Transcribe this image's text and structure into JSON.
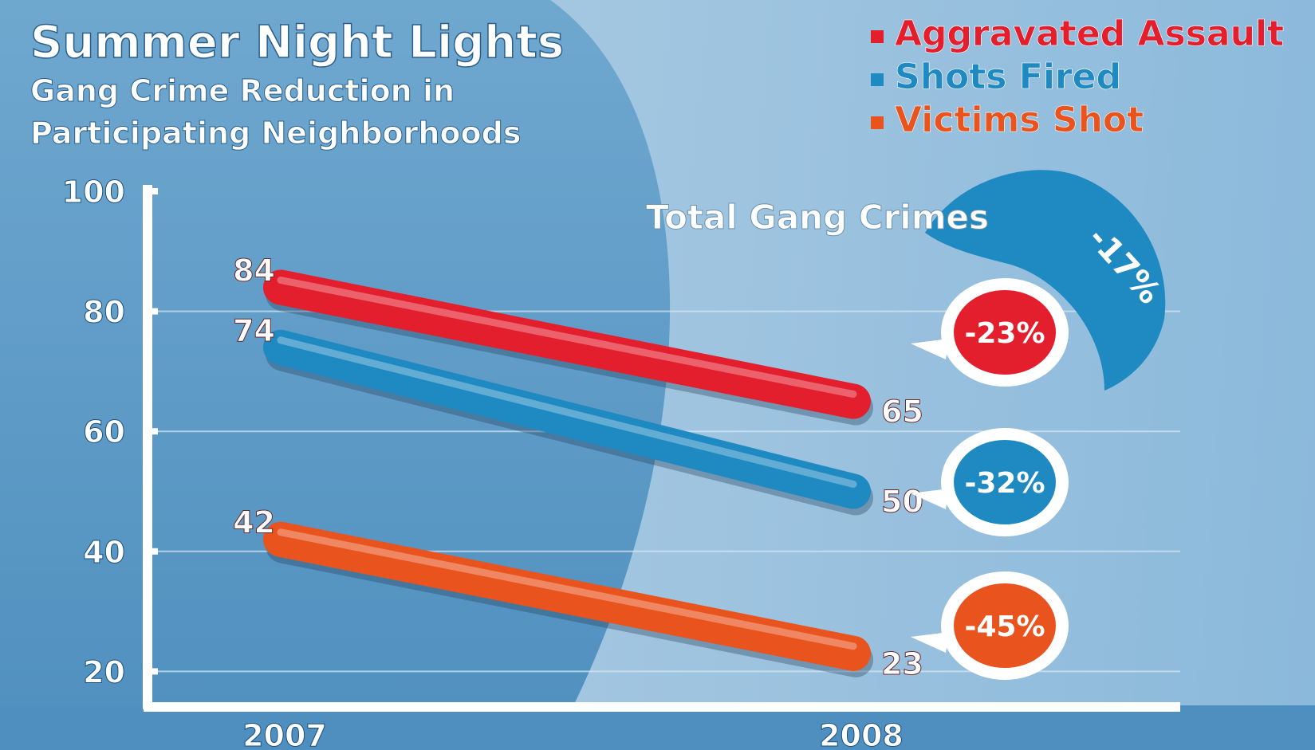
{
  "chart_data": {
    "type": "line",
    "title": "Summer Night Lights",
    "subtitle": [
      "Gang Crime Reduction in",
      "Participating Neighborhoods"
    ],
    "xlabel": "",
    "ylabel": "",
    "categories": [
      "2007",
      "2008"
    ],
    "y_ticks": [
      "100",
      "80",
      "60",
      "40",
      "20"
    ],
    "ylim": [
      0,
      100
    ],
    "grid": true,
    "legend_position": "top-right",
    "series": [
      {
        "name": "Aggravated Assault",
        "values": [
          84,
          65
        ],
        "labels": [
          "84",
          "65"
        ],
        "change": "-23%",
        "color": "#e31e2d"
      },
      {
        "name": "Shots Fired",
        "values": [
          74,
          50
        ],
        "labels": [
          "74",
          "50"
        ],
        "change": "-32%",
        "color": "#1f8ac2"
      },
      {
        "name": "Victims Shot",
        "values": [
          42,
          23
        ],
        "labels": [
          "42",
          "23"
        ],
        "change": "-45%",
        "color": "#e8531e"
      }
    ],
    "total": {
      "label": "Total Gang Crimes",
      "change": "-17%",
      "color": "#1f8ac2"
    }
  }
}
